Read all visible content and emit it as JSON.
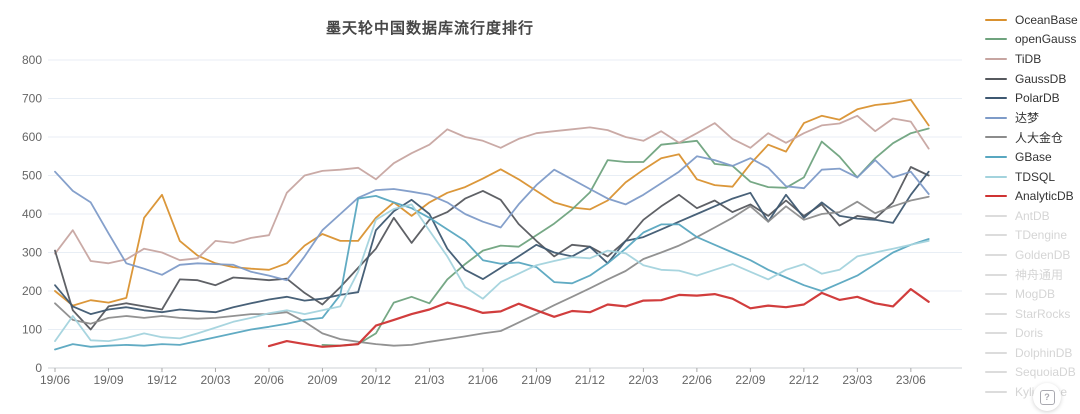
{
  "chart_data": {
    "type": "line",
    "title": "墨天轮中国数据库流行度排行",
    "x_unit": "month",
    "x_ticks": [
      "19/06",
      "19/09",
      "19/12",
      "20/03",
      "20/06",
      "20/09",
      "20/12",
      "21/03",
      "21/06",
      "21/09",
      "21/12",
      "22/03",
      "22/06",
      "22/09",
      "22/12",
      "23/03",
      "23/06"
    ],
    "x_range_note": "monthly points from 19/06 to 23/07",
    "ylim": [
      0,
      800
    ],
    "yticks": [
      0,
      100,
      200,
      300,
      400,
      500,
      600,
      700,
      800
    ],
    "grid": true,
    "legend_position": "right",
    "series": [
      {
        "name": "OceanBase",
        "color": "#d9912f",
        "values": [
          200,
          162,
          176,
          170,
          182,
          390,
          450,
          330,
          292,
          272,
          262,
          258,
          255,
          272,
          318,
          348,
          330,
          330,
          390,
          430,
          395,
          430,
          455,
          470,
          492,
          516,
          490,
          460,
          430,
          417,
          412,
          435,
          482,
          515,
          545,
          555,
          490,
          475,
          471,
          530,
          580,
          562,
          636,
          655,
          645,
          672,
          683,
          688,
          697,
          630
        ]
      },
      {
        "name": "openGauss",
        "color": "#6fa37e",
        "values": [
          null,
          null,
          null,
          null,
          null,
          null,
          null,
          null,
          null,
          null,
          null,
          null,
          null,
          null,
          null,
          60,
          58,
          62,
          90,
          170,
          185,
          168,
          230,
          270,
          305,
          318,
          315,
          345,
          375,
          412,
          456,
          540,
          535,
          535,
          580,
          585,
          590,
          530,
          525,
          484,
          470,
          468,
          495,
          588,
          549,
          495,
          545,
          584,
          610,
          622
        ]
      },
      {
        "name": "TiDB",
        "color": "#c7a5a1",
        "values": [
          297,
          358,
          278,
          272,
          282,
          310,
          300,
          280,
          285,
          330,
          325,
          338,
          345,
          455,
          500,
          512,
          515,
          520,
          490,
          532,
          558,
          580,
          620,
          600,
          590,
          572,
          595,
          610,
          615,
          620,
          625,
          618,
          600,
          590,
          615,
          585,
          610,
          636,
          595,
          572,
          610,
          585,
          610,
          630,
          635,
          655,
          615,
          648,
          640,
          570
        ]
      },
      {
        "name": "GaussDB",
        "color": "#56595e",
        "values": [
          305,
          150,
          100,
          160,
          168,
          160,
          152,
          230,
          228,
          215,
          235,
          232,
          228,
          232,
          195,
          165,
          210,
          260,
          310,
          390,
          325,
          385,
          405,
          440,
          460,
          437,
          374,
          330,
          290,
          320,
          315,
          290,
          330,
          385,
          420,
          450,
          415,
          435,
          405,
          425,
          395,
          435,
          395,
          425,
          370,
          395,
          388,
          430,
          522,
          500
        ]
      },
      {
        "name": "PolarDB",
        "color": "#3e5871",
        "values": [
          215,
          160,
          140,
          152,
          158,
          150,
          145,
          152,
          148,
          145,
          158,
          168,
          178,
          185,
          175,
          180,
          190,
          197,
          358,
          407,
          437,
          400,
          310,
          255,
          231,
          260,
          290,
          320,
          300,
          290,
          315,
          272,
          330,
          340,
          360,
          380,
          400,
          420,
          440,
          455,
          380,
          450,
          390,
          430,
          395,
          388,
          385,
          377,
          450,
          510
        ]
      },
      {
        "name": "达梦",
        "color": "#7e9bc8",
        "values": [
          510,
          460,
          430,
          350,
          272,
          258,
          242,
          268,
          272,
          270,
          268,
          250,
          240,
          228,
          290,
          358,
          400,
          442,
          462,
          465,
          458,
          450,
          430,
          400,
          380,
          365,
          425,
          475,
          515,
          490,
          465,
          440,
          425,
          450,
          480,
          510,
          550,
          540,
          525,
          545,
          520,
          472,
          467,
          515,
          518,
          495,
          540,
          495,
          510,
          452
        ]
      },
      {
        "name": "人大金仓",
        "color": "#8c8c8c",
        "values": [
          168,
          125,
          115,
          130,
          135,
          130,
          135,
          130,
          128,
          130,
          135,
          140,
          140,
          145,
          120,
          90,
          75,
          68,
          62,
          58,
          60,
          68,
          75,
          82,
          90,
          96,
          118,
          140,
          163,
          185,
          207,
          230,
          252,
          283,
          300,
          318,
          340,
          365,
          390,
          420,
          380,
          420,
          385,
          400,
          405,
          432,
          402,
          420,
          435,
          445
        ]
      },
      {
        "name": "GBase",
        "color": "#58a7c0",
        "values": [
          48,
          62,
          55,
          58,
          60,
          58,
          62,
          60,
          70,
          80,
          90,
          100,
          107,
          115,
          125,
          130,
          190,
          440,
          447,
          430,
          415,
          390,
          360,
          330,
          280,
          271,
          274,
          262,
          223,
          220,
          240,
          272,
          310,
          352,
          373,
          373,
          340,
          320,
          300,
          280,
          255,
          235,
          215,
          200,
          220,
          240,
          270,
          300,
          320,
          335
        ]
      },
      {
        "name": "TDSQL",
        "color": "#a3d3dd",
        "values": [
          70,
          135,
          72,
          70,
          78,
          90,
          80,
          77,
          90,
          105,
          120,
          130,
          142,
          150,
          140,
          150,
          160,
          250,
          385,
          413,
          425,
          357,
          290,
          210,
          180,
          223,
          245,
          267,
          278,
          288,
          285,
          305,
          298,
          267,
          255,
          253,
          240,
          255,
          270,
          250,
          230,
          255,
          270,
          245,
          255,
          290,
          300,
          310,
          320,
          330
        ]
      },
      {
        "name": "AnalyticDB",
        "color": "#cf3333",
        "values": [
          null,
          null,
          null,
          null,
          null,
          null,
          null,
          null,
          null,
          null,
          null,
          null,
          57,
          70,
          62,
          55,
          58,
          62,
          110,
          125,
          140,
          152,
          170,
          158,
          143,
          147,
          167,
          150,
          133,
          148,
          145,
          165,
          160,
          175,
          176,
          190,
          188,
          192,
          180,
          155,
          162,
          158,
          165,
          195,
          177,
          185,
          168,
          160,
          205,
          172
        ]
      }
    ],
    "inactive_series": [
      "AntDB",
      "TDengine",
      "GoldenDB",
      "神舟通用",
      "MogDB",
      "StarRocks",
      "Doris",
      "DolphinDB",
      "SequoiaDB",
      "Kyligence"
    ]
  },
  "legend": {
    "inactive_color": "#dcdcdc",
    "active_text_color": "#333333",
    "inactive_text_color": "#d5d5d5"
  },
  "axis": {
    "label_color": "#666666",
    "grid_color": "#e8eef5",
    "axis_line_color": "#ccd0d6",
    "tick_color": "#aaaaaa"
  },
  "help_button": {
    "label": "?"
  }
}
